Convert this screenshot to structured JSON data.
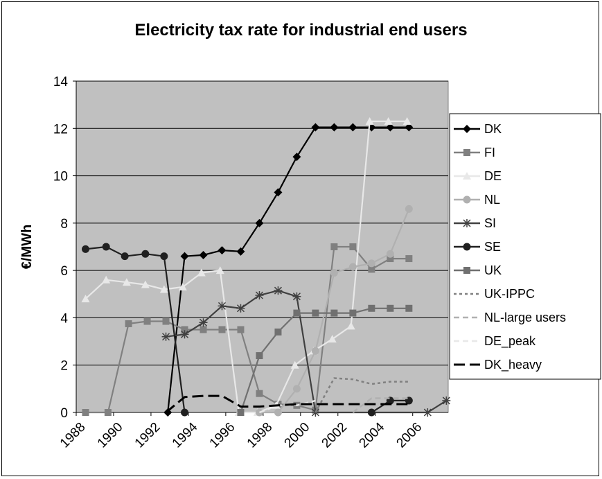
{
  "chart_data": {
    "type": "line",
    "title": "Electricity tax rate for industrial end users",
    "xlabel": "",
    "ylabel": "€/MWh",
    "ylim": [
      0,
      14
    ],
    "yticks": [
      "0",
      "2",
      "4",
      "6",
      "8",
      "10",
      "12",
      "14"
    ],
    "xticks": [
      "1988",
      "1990",
      "1992",
      "1994",
      "1996",
      "1998",
      "2000",
      "2002",
      "2004",
      "2006"
    ],
    "grid": true,
    "plot_background": "#c0c0c0",
    "legend_position": "right",
    "series": [
      {
        "name": "DK",
        "color": "#000000",
        "marker": "diamond",
        "dash": "solid",
        "points": [
          [
            1992.9,
            0
          ],
          [
            1993.8,
            6.6
          ],
          [
            1994.8,
            6.65
          ],
          [
            1995.8,
            6.85
          ],
          [
            1996.8,
            6.8
          ],
          [
            1997.8,
            8.0
          ],
          [
            1998.8,
            9.3
          ],
          [
            1999.8,
            10.8
          ],
          [
            2000.8,
            12.05
          ],
          [
            2001.8,
            12.05
          ],
          [
            2002.8,
            12.05
          ],
          [
            2003.8,
            12.05
          ],
          [
            2004.8,
            12.05
          ],
          [
            2005.8,
            12.05
          ]
        ]
      },
      {
        "name": "FI",
        "color": "#808080",
        "marker": "square",
        "dash": "solid",
        "points": [
          [
            1988.5,
            0
          ],
          [
            1989.7,
            0
          ],
          [
            1990.8,
            3.75
          ],
          [
            1991.8,
            3.85
          ],
          [
            1992.8,
            3.85
          ],
          [
            1993.8,
            3.5
          ],
          [
            1994.8,
            3.5
          ],
          [
            1995.8,
            3.5
          ],
          [
            1996.8,
            3.5
          ],
          [
            1997.8,
            0.8
          ],
          [
            1998.8,
            0.35
          ],
          [
            1999.8,
            0.3
          ],
          [
            2000.8,
            0.1
          ],
          [
            2001.8,
            7.0
          ],
          [
            2002.8,
            7.0
          ],
          [
            2003.8,
            6.05
          ],
          [
            2004.8,
            6.5
          ],
          [
            2005.8,
            6.5
          ]
        ]
      },
      {
        "name": "DE",
        "color": "#e8e8e8",
        "marker": "triangle",
        "dash": "solid",
        "points": [
          [
            1988.5,
            4.8
          ],
          [
            1989.6,
            5.6
          ],
          [
            1990.7,
            5.5
          ],
          [
            1991.7,
            5.4
          ],
          [
            1992.7,
            5.2
          ],
          [
            1993.7,
            5.3
          ],
          [
            1994.7,
            5.9
          ],
          [
            1995.7,
            6.0
          ],
          [
            1996.7,
            0
          ],
          [
            1997.7,
            0
          ],
          [
            1998.7,
            0.3
          ],
          [
            1999.7,
            2.0
          ],
          [
            2000.7,
            2.6
          ],
          [
            2001.7,
            3.1
          ],
          [
            2002.7,
            3.65
          ],
          [
            2003.7,
            12.3
          ],
          [
            2004.7,
            12.3
          ],
          [
            2005.7,
            12.3
          ]
        ]
      },
      {
        "name": "NL",
        "color": "#b0b0b0",
        "marker": "circle",
        "dash": "solid",
        "points": [
          [
            1997.8,
            0
          ],
          [
            1998.8,
            0
          ],
          [
            1999.8,
            1.0
          ],
          [
            2000.8,
            2.6
          ],
          [
            2001.8,
            5.9
          ],
          [
            2002.8,
            6.15
          ],
          [
            2003.8,
            6.3
          ],
          [
            2004.8,
            6.7
          ],
          [
            2005.8,
            8.6
          ]
        ]
      },
      {
        "name": "SI",
        "color": "#404040",
        "marker": "star",
        "dash": "solid",
        "points": [
          [
            1992.8,
            3.2
          ],
          [
            1993.8,
            3.3
          ],
          [
            1994.8,
            3.8
          ],
          [
            1995.8,
            4.5
          ],
          [
            1996.8,
            4.4
          ],
          [
            1997.8,
            4.95
          ],
          [
            1998.8,
            5.15
          ],
          [
            1999.8,
            4.9
          ],
          [
            2000.8,
            0
          ],
          [
            2006.8,
            0
          ],
          [
            2007.8,
            0.5
          ]
        ]
      },
      {
        "name": "SE",
        "color": "#202020",
        "marker": "circle",
        "dash": "solid",
        "points": [
          [
            1988.5,
            6.9
          ],
          [
            1989.6,
            7.0
          ],
          [
            1990.6,
            6.6
          ],
          [
            1991.7,
            6.7
          ],
          [
            1992.7,
            6.6
          ],
          [
            1993.8,
            0
          ],
          [
            1993.9,
            null
          ],
          [
            2003.8,
            0
          ],
          [
            2004.8,
            0.5
          ],
          [
            2005.8,
            0.5
          ]
        ]
      },
      {
        "name": "UK",
        "color": "#707070",
        "marker": "square",
        "dash": "solid",
        "points": [
          [
            1996.8,
            0
          ],
          [
            1997.8,
            2.4
          ],
          [
            1998.8,
            3.4
          ],
          [
            1999.8,
            4.2
          ],
          [
            2000.8,
            4.2
          ],
          [
            2001.8,
            4.2
          ],
          [
            2002.8,
            4.2
          ],
          [
            2003.8,
            4.4
          ],
          [
            2004.8,
            4.4
          ],
          [
            2005.8,
            4.4
          ]
        ]
      },
      {
        "name": "UK-IPPC",
        "color": "#808080",
        "marker": "none",
        "dash": "short-dash",
        "points": [
          [
            2000.8,
            0
          ],
          [
            2001.8,
            1.45
          ],
          [
            2002.8,
            1.4
          ],
          [
            2003.8,
            1.2
          ],
          [
            2004.8,
            1.3
          ],
          [
            2005.8,
            1.3
          ]
        ]
      },
      {
        "name": "NL-large users",
        "color": "#b0b0b0",
        "marker": "none",
        "dash": "dash",
        "points": [
          [
            2002.8,
            0
          ],
          [
            2003.8,
            0.6
          ],
          [
            2004.8,
            0.6
          ],
          [
            2005.8,
            0.6
          ]
        ]
      },
      {
        "name": "DE_peak",
        "color": "#e8e8e8",
        "marker": "none",
        "dash": "dash",
        "points": [
          [
            1997.8,
            0
          ],
          [
            1998.8,
            0.3
          ],
          [
            1999.8,
            0.3
          ],
          [
            2000.8,
            0.5
          ]
        ]
      },
      {
        "name": "DK_heavy",
        "color": "#000000",
        "marker": "none",
        "dash": "long-dash",
        "points": [
          [
            1992.8,
            0
          ],
          [
            1993.8,
            0.65
          ],
          [
            1994.8,
            0.7
          ],
          [
            1995.8,
            0.7
          ],
          [
            1996.8,
            0.25
          ],
          [
            1997.8,
            0.25
          ],
          [
            1998.8,
            0.3
          ],
          [
            1999.8,
            0.35
          ],
          [
            2000.8,
            0.35
          ],
          [
            2001.8,
            0.35
          ],
          [
            2002.8,
            0.35
          ],
          [
            2003.8,
            0.35
          ],
          [
            2004.8,
            0.35
          ],
          [
            2005.8,
            0.35
          ]
        ]
      }
    ]
  }
}
